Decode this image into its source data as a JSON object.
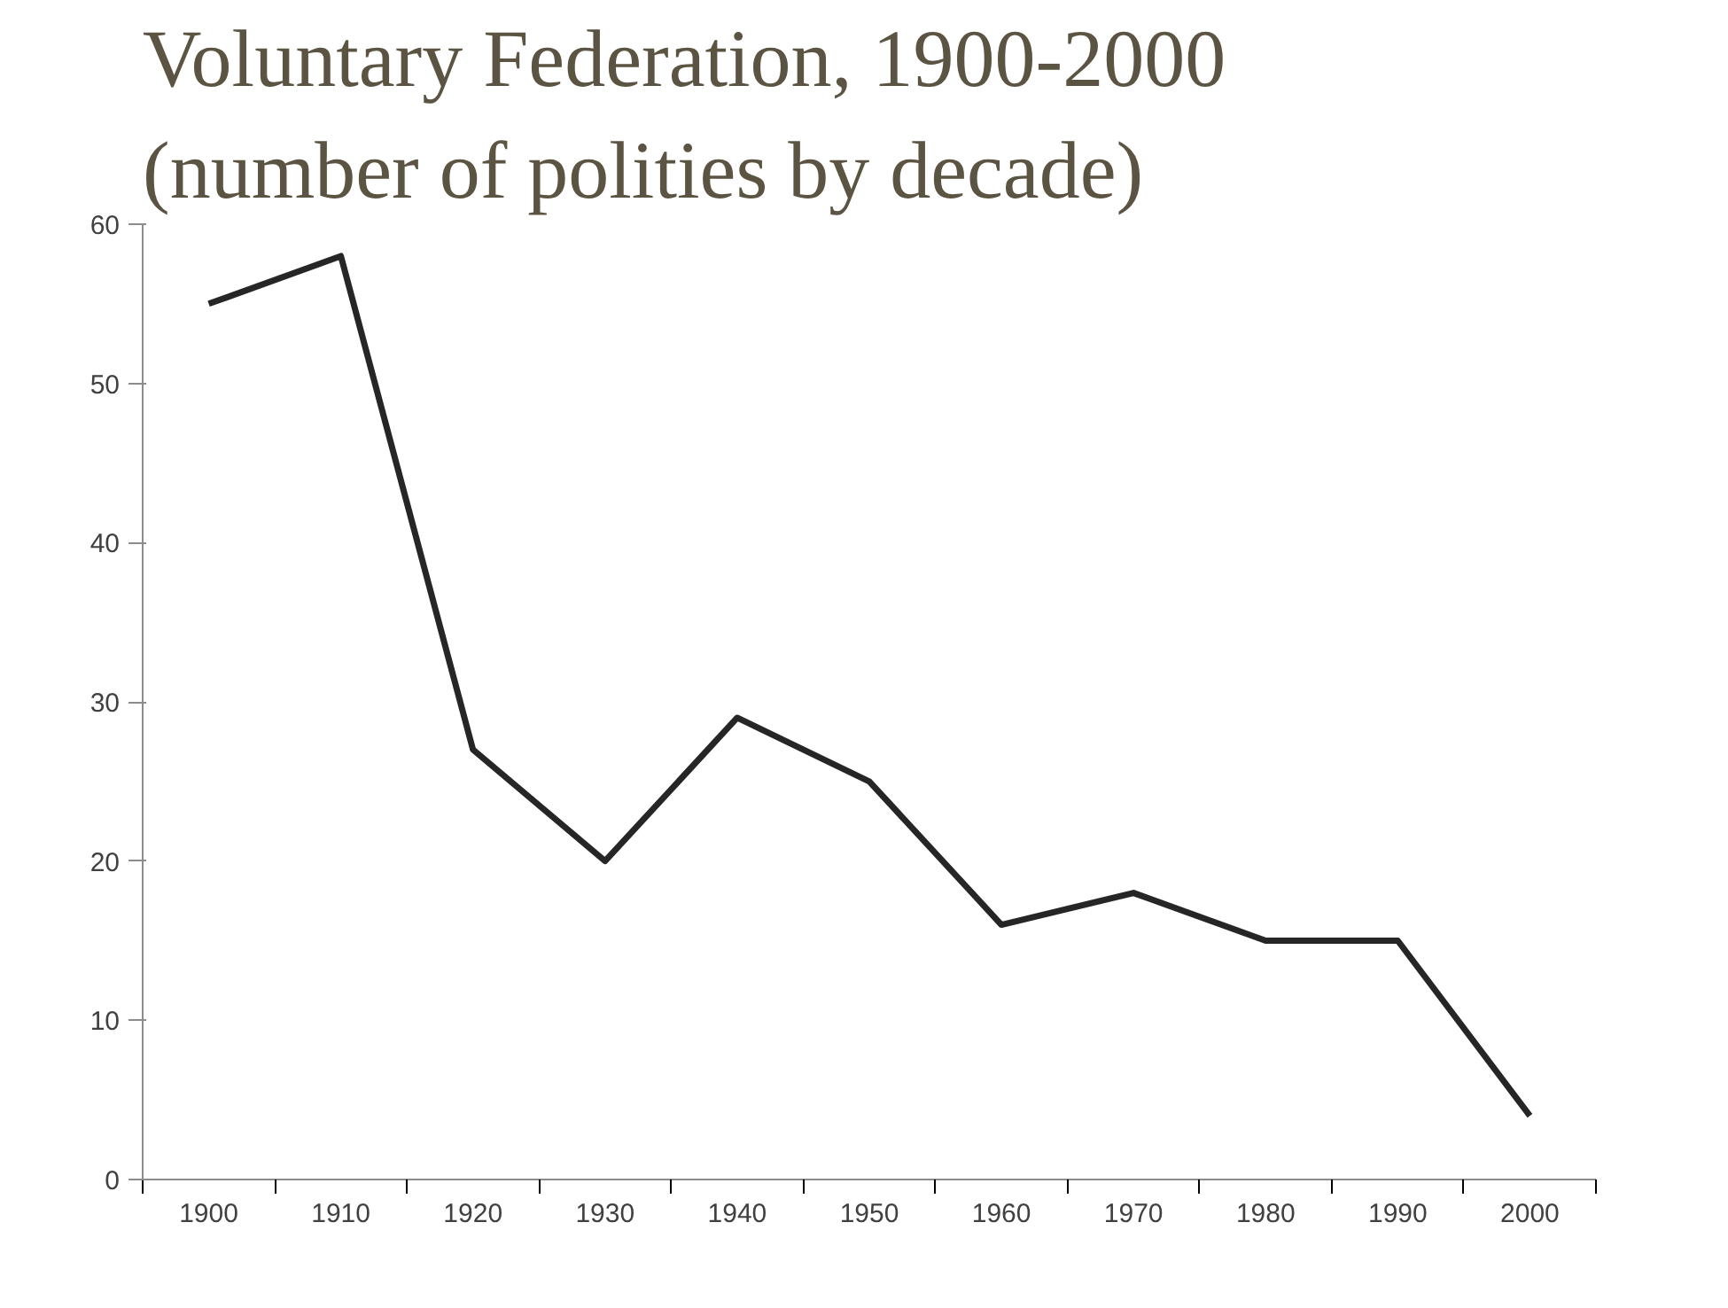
{
  "chart_data": {
    "type": "line",
    "title": "Voluntary Federation, 1900-2000",
    "subtitle": "(number of polities by decade)",
    "categories": [
      "1900",
      "1910",
      "1920",
      "1930",
      "1940",
      "1950",
      "1960",
      "1970",
      "1980",
      "1990",
      "2000"
    ],
    "series": [
      {
        "color": "#262626",
        "values": [
          55,
          58,
          27,
          20,
          29,
          25,
          16,
          18,
          15,
          15,
          4
        ]
      }
    ],
    "ylim": [
      0,
      60
    ],
    "yticks": [
      0,
      10,
      20,
      30,
      40,
      50,
      60
    ],
    "line_style": "solid"
  }
}
